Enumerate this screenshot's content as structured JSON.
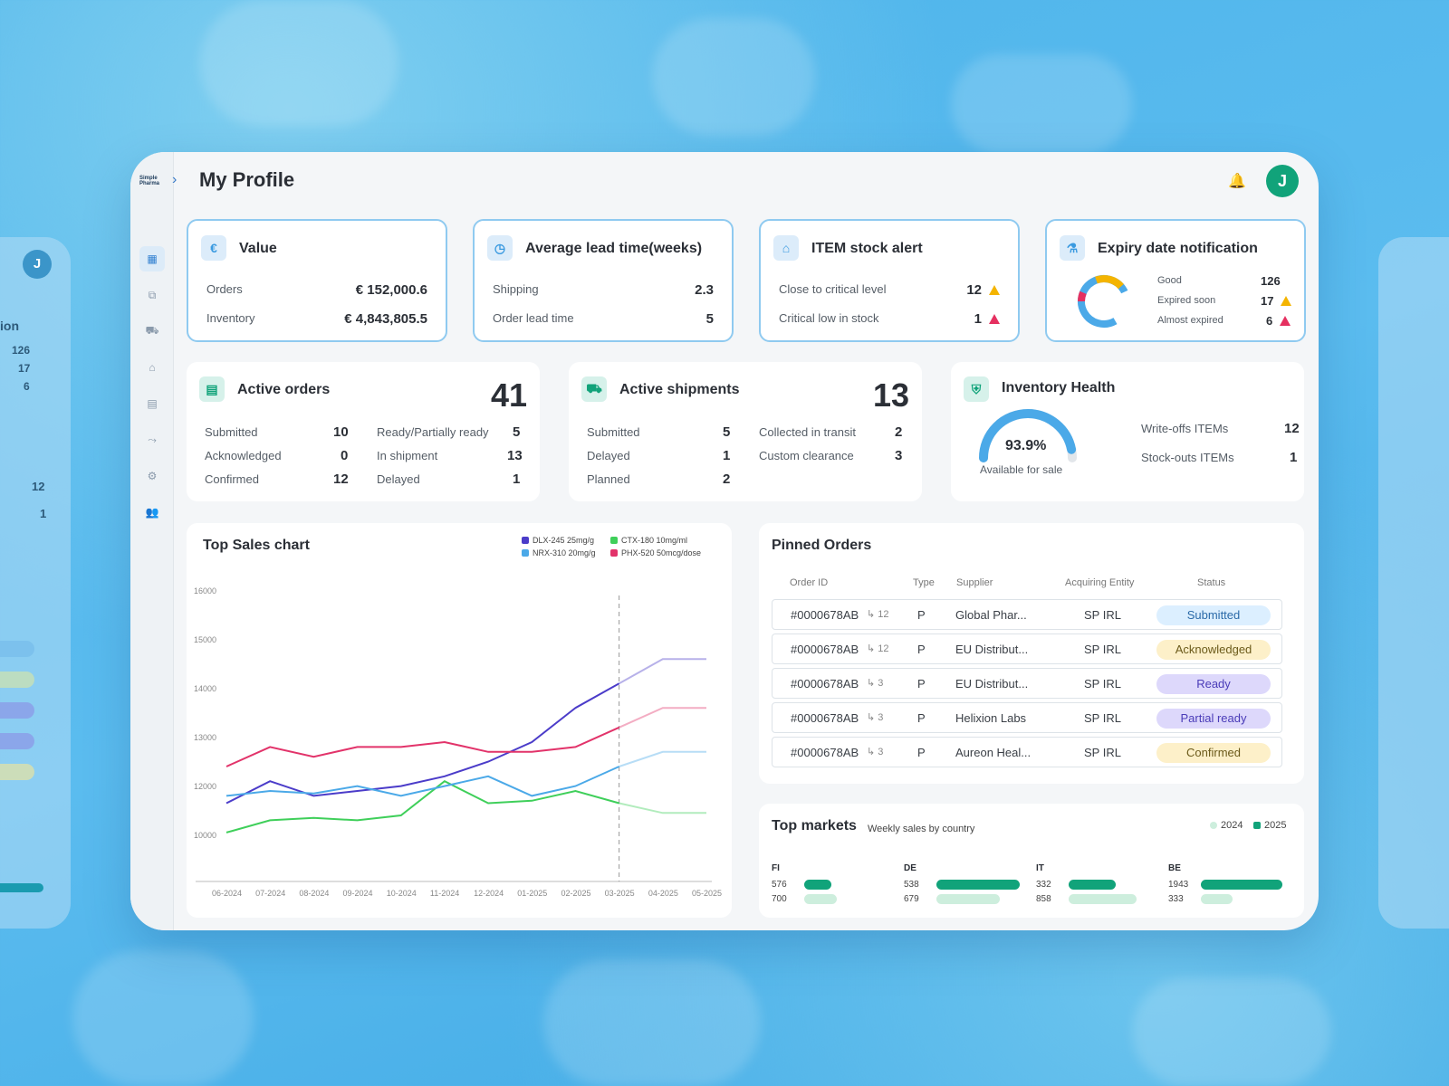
{
  "header": {
    "title": "My Profile",
    "avatar_initial": "J"
  },
  "colors": {
    "accent": "#11a37a",
    "blue": "#3a9ae0",
    "warn": "#f4b400",
    "danger": "#e53060"
  },
  "value_card": {
    "title": "Value",
    "rows": [
      {
        "label": "Orders",
        "value": "€ 152,000.6"
      },
      {
        "label": "Inventory",
        "value": "€ 4,843,805.5"
      }
    ]
  },
  "lead_card": {
    "title": "Average lead time(weeks)",
    "rows": [
      {
        "label": "Shipping",
        "value": "2.3"
      },
      {
        "label": "Order lead time",
        "value": "5"
      }
    ]
  },
  "stock_card": {
    "title": "ITEM stock alert",
    "rows": [
      {
        "label": "Close to critical level",
        "value": "12"
      },
      {
        "label": "Critical low in stock",
        "value": "1"
      }
    ]
  },
  "expiry_card": {
    "title": "Expiry date notification",
    "rows": [
      {
        "label": "Good",
        "value": "126"
      },
      {
        "label": "Expired soon",
        "value": "17"
      },
      {
        "label": "Almost expired",
        "value": "6"
      }
    ]
  },
  "active_orders": {
    "title": "Active orders",
    "total": "41",
    "left": [
      {
        "label": "Submitted",
        "value": "10"
      },
      {
        "label": "Acknowledged",
        "value": "0"
      },
      {
        "label": "Confirmed",
        "value": "12"
      }
    ],
    "right": [
      {
        "label": "Ready/Partially ready",
        "value": "5"
      },
      {
        "label": "In shipment",
        "value": "13"
      },
      {
        "label": "Delayed",
        "value": "1"
      }
    ]
  },
  "active_shipments": {
    "title": "Active shipments",
    "total": "13",
    "left": [
      {
        "label": "Submitted",
        "value": "5"
      },
      {
        "label": "Delayed",
        "value": "1"
      },
      {
        "label": "Planned",
        "value": "2"
      }
    ],
    "right": [
      {
        "label": "Collected in transit",
        "value": "2"
      },
      {
        "label": "Custom clearance",
        "value": "3"
      }
    ]
  },
  "inventory_health": {
    "title": "Inventory Health",
    "percent": "93.9%",
    "percent_value": 93.9,
    "caption": "Available for sale",
    "rows": [
      {
        "label": "Write-offs ITEMs",
        "value": "12"
      },
      {
        "label": "Stock-outs ITEMs",
        "value": "1"
      }
    ]
  },
  "chart_data": {
    "type": "line",
    "title": "Top Sales chart",
    "categories": [
      "06-2024",
      "07-2024",
      "08-2024",
      "09-2024",
      "10-2024",
      "11-2024",
      "12-2024",
      "01-2025",
      "02-2025",
      "03-2025",
      "04-2025",
      "05-2025"
    ],
    "y_ticks": [
      "16000",
      "15000",
      "14000",
      "13000",
      "12000",
      "10000"
    ],
    "series": [
      {
        "name": "DLX-245 25mg/g",
        "color": "#4b3cc9",
        "values": [
          11500,
          12200,
          11800,
          12000,
          12100,
          12300,
          12600,
          13000,
          13700,
          14200,
          14700,
          14700
        ]
      },
      {
        "name": "CTX-180 10mg/ml",
        "color": "#3fcf5a",
        "values": [
          10300,
          10800,
          10900,
          10800,
          11000,
          12200,
          11500,
          11600,
          12000,
          11500,
          11100,
          11100
        ]
      },
      {
        "name": "NRX-310 20mg/g",
        "color": "#4ba9e8",
        "values": [
          11800,
          12000,
          11900,
          12100,
          11800,
          12100,
          12300,
          11800,
          12100,
          12500,
          12800,
          12800
        ]
      },
      {
        "name": "PHX-520 50mcg/dose",
        "color": "#e2336a",
        "values": [
          12500,
          12900,
          12700,
          12900,
          12900,
          13000,
          12800,
          12800,
          12900,
          13300,
          13700,
          13700
        ]
      }
    ]
  },
  "pinned": {
    "title": "Pinned Orders",
    "headers": [
      "Order ID",
      "Type",
      "Supplier",
      "Acquiring Entity",
      "Status"
    ],
    "rows": [
      {
        "id": "#0000678AB",
        "sub": "↳ 12",
        "type": "P",
        "supplier": "Global Phar...",
        "entity": "SP IRL",
        "status": "Submitted"
      },
      {
        "id": "#0000678AB",
        "sub": "↳ 12",
        "type": "P",
        "supplier": "EU Distribut...",
        "entity": "SP IRL",
        "status": "Acknowledged"
      },
      {
        "id": "#0000678AB",
        "sub": "↳ 3",
        "type": "P",
        "supplier": "EU Distribut...",
        "entity": "SP IRL",
        "status": "Ready"
      },
      {
        "id": "#0000678AB",
        "sub": "↳ 3",
        "type": "P",
        "supplier": "Helixion Labs",
        "entity": "SP IRL",
        "status": "Partial ready"
      },
      {
        "id": "#0000678AB",
        "sub": "↳ 3",
        "type": "P",
        "supplier": "Aureon Heal...",
        "entity": "SP IRL",
        "status": "Confirmed"
      }
    ]
  },
  "markets": {
    "title": "Top markets",
    "subtitle": "Weekly sales by country",
    "legend": [
      "2024",
      "2025"
    ],
    "items": [
      {
        "code": "FI",
        "a": "576",
        "b": "700",
        "fa": 0.3,
        "fb": 0.36
      },
      {
        "code": "DE",
        "a": "538",
        "b": "679",
        "fa": 0.92,
        "fb": 0.7
      },
      {
        "code": "IT",
        "a": "332",
        "b": "858",
        "fa": 0.52,
        "fb": 0.75
      },
      {
        "code": "BE",
        "a": "1943",
        "b": "333",
        "fa": 0.9,
        "fb": 0.35
      }
    ]
  }
}
